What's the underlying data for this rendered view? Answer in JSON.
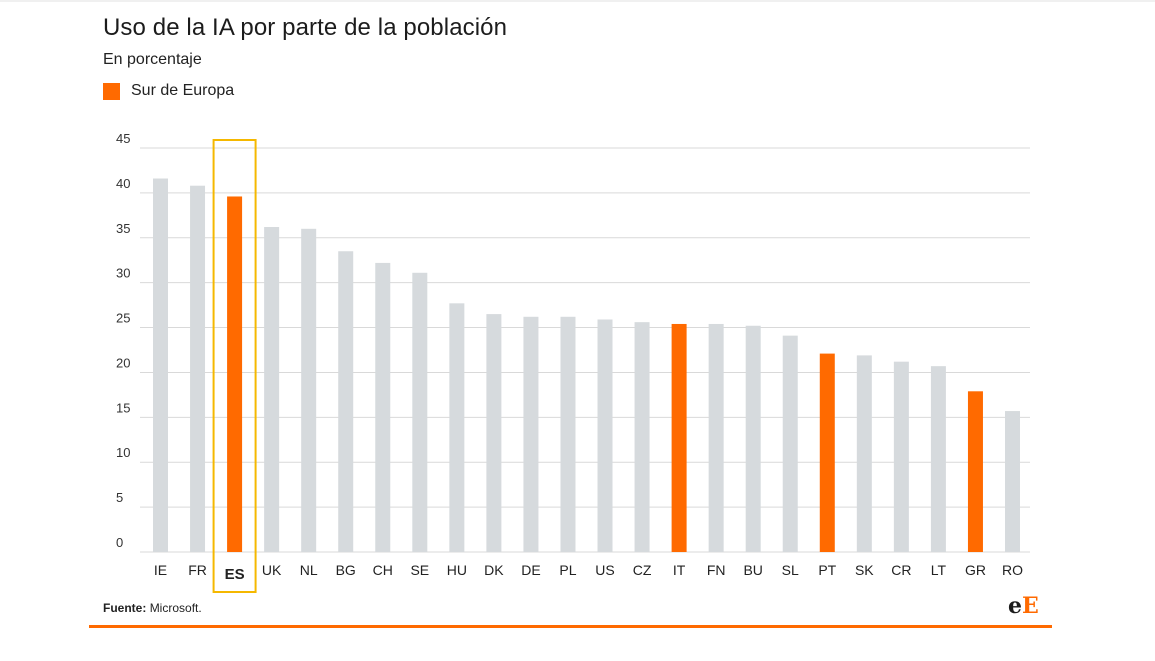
{
  "header": {
    "title": "Uso de la IA por parte de la población",
    "subtitle": "En porcentaje"
  },
  "legend": {
    "label": "Sur de Europa"
  },
  "footer": {
    "source_label": "Fuente:",
    "source_value": "Microsoft.",
    "logo_e": "e",
    "logo_E": "E"
  },
  "colors": {
    "highlight": "#ff6a00",
    "default_bar": "#d6dadd",
    "grid": "#d9d9d9",
    "box": "#f5b800"
  },
  "chart_data": {
    "type": "bar",
    "categories": [
      "IE",
      "FR",
      "ES",
      "UK",
      "NL",
      "BG",
      "CH",
      "SE",
      "HU",
      "DK",
      "DE",
      "PL",
      "US",
      "CZ",
      "IT",
      "FN",
      "BU",
      "SL",
      "PT",
      "SK",
      "CR",
      "LT",
      "GR",
      "RO"
    ],
    "values": [
      41.6,
      40.8,
      39.6,
      36.2,
      36.0,
      33.5,
      32.2,
      31.1,
      27.7,
      26.5,
      26.2,
      26.2,
      25.9,
      25.6,
      25.4,
      25.4,
      25.2,
      24.1,
      22.1,
      21.9,
      21.2,
      20.7,
      17.9,
      15.7
    ],
    "highlighted": [
      "ES",
      "IT",
      "PT",
      "GR"
    ],
    "boxed_category": "ES",
    "yticks": [
      0,
      5,
      10,
      15,
      20,
      25,
      30,
      35,
      40,
      45
    ],
    "ylim": [
      0,
      45
    ],
    "grid": true,
    "legend_position": "top-left"
  }
}
